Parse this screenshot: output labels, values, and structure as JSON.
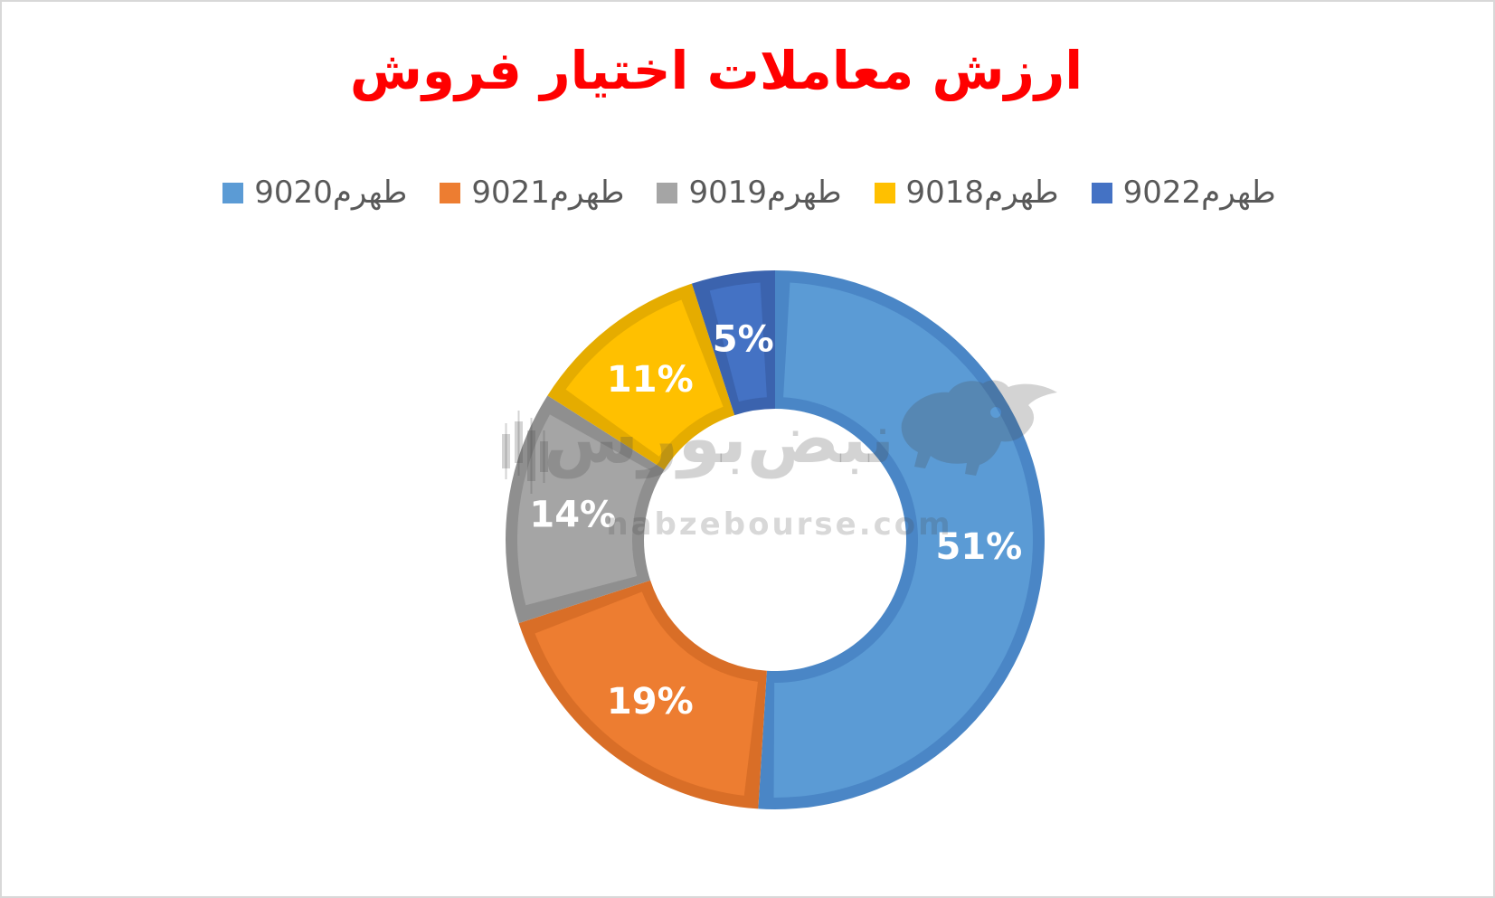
{
  "title": {
    "text": "ارزش معاملات اختیار فروش",
    "color": "#ff0000"
  },
  "legend": [
    {
      "label": "طهرم9020",
      "color": "#5B9BD5"
    },
    {
      "label": "طهرم9021",
      "color": "#ED7D31"
    },
    {
      "label": "طهرم9019",
      "color": "#A5A5A5"
    },
    {
      "label": "طهرم9018",
      "color": "#FFC000"
    },
    {
      "label": "طهرم9022",
      "color": "#4472C4"
    }
  ],
  "chart_data": {
    "type": "pie",
    "subtype": "doughnut",
    "title": "ارزش معاملات اختیار فروش",
    "categories": [
      "طهرم9020",
      "طهرم9021",
      "طهرم9019",
      "طهرم9018",
      "طهرم9022"
    ],
    "values": [
      51,
      19,
      14,
      11,
      5
    ],
    "unit": "%",
    "data_labels": [
      "51%",
      "19%",
      "14%",
      "11%",
      "5%"
    ],
    "colors": [
      "#5B9BD5",
      "#ED7D31",
      "#A5A5A5",
      "#FFC000",
      "#4472C4"
    ],
    "border_colors": [
      "#4A86C6",
      "#D96E27",
      "#8F8F8F",
      "#E5AC00",
      "#3B63AE"
    ],
    "label_color": "#ffffff",
    "start_angle_deg": 0,
    "direction": "clockwise",
    "donut_hole_ratio": 0.487,
    "legend_position": "top",
    "grid": false
  },
  "watermark": {
    "brand_fa": "نبض‌بورس",
    "domain": "nabzebourse.com"
  }
}
